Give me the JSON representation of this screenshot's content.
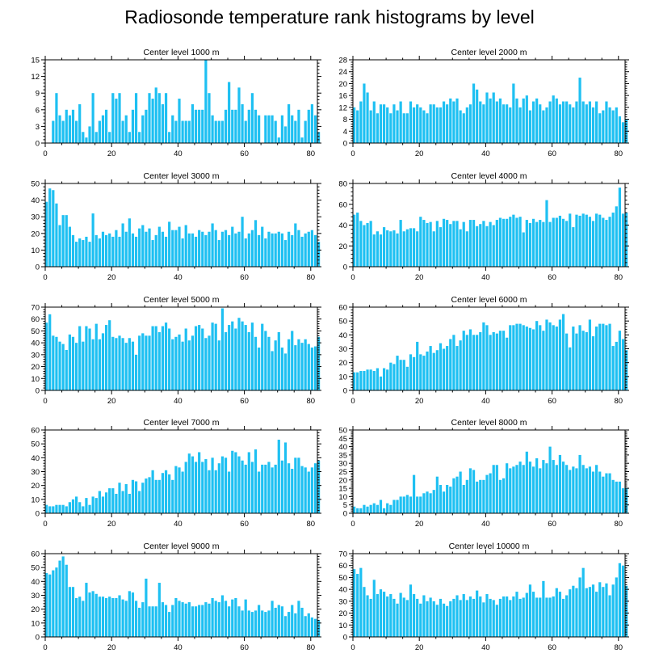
{
  "title": "Radiosonde temperature rank histograms by level",
  "bar_color": "#1ec0f2",
  "chart_data": [
    {
      "type": "bar",
      "title": "Center level 1000 m",
      "xlim": [
        0,
        82
      ],
      "ylim": [
        0,
        15
      ],
      "xticks": [
        0,
        20,
        40,
        60,
        80
      ],
      "yticks": [
        0,
        3,
        6,
        9,
        12,
        15
      ],
      "values": [
        0,
        0,
        4,
        9,
        5,
        4,
        6,
        5,
        6,
        4,
        7,
        2,
        1,
        3,
        9,
        2,
        4,
        5,
        6,
        2,
        9,
        8,
        9,
        4,
        5,
        2,
        6,
        9,
        2,
        5,
        6,
        9,
        8,
        10,
        9,
        7,
        9,
        2,
        5,
        4,
        8,
        4,
        4,
        4,
        7,
        6,
        6,
        6,
        15,
        9,
        5,
        4,
        4,
        4,
        6,
        11,
        6,
        6,
        10,
        7,
        4,
        6,
        9,
        6,
        5,
        0,
        5,
        5,
        5,
        4,
        1,
        5,
        3,
        7,
        5,
        4,
        6,
        1,
        4,
        6,
        7,
        5,
        2
      ]
    },
    {
      "type": "bar",
      "title": "Center level 2000 m",
      "xlim": [
        0,
        82
      ],
      "ylim": [
        0,
        28
      ],
      "xticks": [
        0,
        20,
        40,
        60,
        80
      ],
      "yticks": [
        0,
        4,
        8,
        12,
        16,
        20,
        24,
        28
      ],
      "values": [
        12,
        11,
        14,
        20,
        17,
        11,
        14,
        10,
        13,
        13,
        12,
        10,
        13,
        11,
        14,
        10,
        10,
        14,
        12,
        13,
        12,
        11,
        10,
        13,
        13,
        12,
        12,
        14,
        13,
        15,
        14,
        15,
        11,
        10,
        12,
        13,
        20,
        18,
        14,
        13,
        17,
        15,
        17,
        14,
        15,
        13,
        13,
        12,
        20,
        15,
        12,
        15,
        16,
        11,
        14,
        15,
        13,
        11,
        12,
        14,
        16,
        15,
        13,
        14,
        14,
        13,
        12,
        14,
        22,
        14,
        13,
        14,
        12,
        14,
        10,
        11,
        14,
        12,
        11,
        12,
        9,
        7,
        8
      ]
    },
    {
      "type": "bar",
      "title": "Center level 3000 m",
      "xlim": [
        0,
        82
      ],
      "ylim": [
        0,
        50
      ],
      "xticks": [
        0,
        20,
        40,
        60,
        80
      ],
      "yticks": [
        0,
        10,
        20,
        30,
        40,
        50
      ],
      "values": [
        39,
        47,
        46,
        38,
        25,
        31,
        31,
        24,
        19,
        15,
        17,
        16,
        18,
        15,
        32,
        19,
        17,
        21,
        19,
        20,
        18,
        22,
        18,
        26,
        21,
        29,
        20,
        18,
        23,
        25,
        21,
        23,
        16,
        19,
        24,
        21,
        18,
        27,
        22,
        22,
        24,
        17,
        25,
        20,
        20,
        18,
        22,
        21,
        19,
        21,
        26,
        22,
        16,
        21,
        22,
        19,
        24,
        20,
        21,
        30,
        17,
        20,
        22,
        28,
        19,
        24,
        17,
        21,
        20,
        20,
        21,
        20,
        16,
        21,
        19,
        26,
        22,
        18,
        20,
        21,
        22,
        19,
        15
      ]
    },
    {
      "type": "bar",
      "title": "Center level 4000 m",
      "xlim": [
        0,
        82
      ],
      "ylim": [
        0,
        80
      ],
      "xticks": [
        0,
        20,
        40,
        60,
        80
      ],
      "yticks": [
        0,
        20,
        40,
        60,
        80
      ],
      "values": [
        50,
        52,
        44,
        40,
        42,
        44,
        31,
        34,
        31,
        38,
        35,
        34,
        35,
        32,
        45,
        34,
        36,
        37,
        37,
        34,
        48,
        45,
        42,
        43,
        34,
        44,
        38,
        46,
        45,
        41,
        44,
        44,
        36,
        43,
        34,
        45,
        45,
        39,
        41,
        44,
        39,
        43,
        40,
        45,
        47,
        46,
        46,
        48,
        50,
        47,
        48,
        33,
        45,
        42,
        46,
        43,
        45,
        43,
        64,
        43,
        47,
        47,
        49,
        46,
        44,
        51,
        38,
        50,
        49,
        51,
        50,
        48,
        44,
        51,
        50,
        47,
        45,
        48,
        52,
        58,
        76,
        51,
        52
      ]
    },
    {
      "type": "bar",
      "title": "Center level 5000 m",
      "xlim": [
        0,
        82
      ],
      "ylim": [
        0,
        70
      ],
      "xticks": [
        0,
        20,
        40,
        60,
        80
      ],
      "yticks": [
        0,
        10,
        20,
        30,
        40,
        50,
        60,
        70
      ],
      "values": [
        57,
        64,
        46,
        45,
        41,
        39,
        34,
        47,
        45,
        40,
        54,
        41,
        54,
        52,
        43,
        56,
        43,
        48,
        55,
        59,
        45,
        44,
        46,
        44,
        40,
        44,
        41,
        30,
        46,
        48,
        46,
        46,
        54,
        54,
        49,
        54,
        57,
        52,
        43,
        45,
        47,
        41,
        52,
        42,
        46,
        54,
        55,
        52,
        44,
        46,
        57,
        56,
        42,
        69,
        49,
        55,
        58,
        52,
        61,
        58,
        55,
        49,
        57,
        45,
        36,
        56,
        50,
        45,
        33,
        42,
        49,
        36,
        31,
        43,
        50,
        38,
        43,
        40,
        43,
        39,
        36,
        37,
        45
      ]
    },
    {
      "type": "bar",
      "title": "Center level 6000 m",
      "xlim": [
        0,
        82
      ],
      "ylim": [
        0,
        60
      ],
      "xticks": [
        0,
        20,
        40,
        60,
        80
      ],
      "yticks": [
        0,
        10,
        20,
        30,
        40,
        50,
        60
      ],
      "values": [
        13,
        13,
        14,
        14,
        15,
        15,
        14,
        16,
        10,
        16,
        15,
        20,
        19,
        25,
        22,
        22,
        17,
        26,
        24,
        35,
        26,
        25,
        28,
        32,
        27,
        29,
        34,
        30,
        32,
        37,
        40,
        32,
        36,
        43,
        40,
        44,
        40,
        40,
        42,
        49,
        47,
        40,
        42,
        41,
        43,
        43,
        38,
        47,
        47,
        48,
        48,
        47,
        46,
        45,
        44,
        50,
        47,
        43,
        51,
        49,
        47,
        46,
        51,
        55,
        41,
        31,
        46,
        41,
        47,
        43,
        42,
        51,
        39,
        46,
        48,
        48,
        47,
        48,
        32,
        35,
        43,
        37,
        29
      ]
    },
    {
      "type": "bar",
      "title": "Center level 7000 m",
      "xlim": [
        0,
        82
      ],
      "ylim": [
        0,
        60
      ],
      "xticks": [
        0,
        20,
        40,
        60,
        80
      ],
      "yticks": [
        0,
        10,
        20,
        30,
        40,
        50,
        60
      ],
      "values": [
        6,
        5,
        5,
        6,
        6,
        6,
        5,
        8,
        10,
        12,
        8,
        5,
        11,
        6,
        12,
        11,
        16,
        12,
        15,
        18,
        18,
        14,
        22,
        16,
        21,
        14,
        24,
        23,
        16,
        22,
        25,
        26,
        31,
        24,
        24,
        29,
        31,
        28,
        24,
        34,
        33,
        30,
        37,
        43,
        41,
        37,
        44,
        37,
        39,
        31,
        40,
        31,
        36,
        41,
        40,
        30,
        45,
        44,
        41,
        38,
        35,
        44,
        37,
        46,
        30,
        35,
        35,
        37,
        33,
        35,
        53,
        38,
        51,
        36,
        32,
        40,
        40,
        34,
        33,
        30,
        33,
        36,
        38
      ]
    },
    {
      "type": "bar",
      "title": "Center level 8000 m",
      "xlim": [
        0,
        82
      ],
      "ylim": [
        0,
        50
      ],
      "xticks": [
        0,
        20,
        40,
        60,
        80
      ],
      "yticks": [
        0,
        5,
        10,
        15,
        20,
        25,
        30,
        35,
        40,
        45,
        50
      ],
      "values": [
        4,
        3,
        3,
        5,
        4,
        5,
        6,
        5,
        8,
        3,
        6,
        5,
        8,
        8,
        10,
        10,
        11,
        10,
        23,
        10,
        10,
        12,
        13,
        12,
        14,
        22,
        17,
        13,
        17,
        16,
        21,
        22,
        25,
        17,
        20,
        27,
        26,
        19,
        20,
        20,
        23,
        24,
        29,
        29,
        20,
        21,
        30,
        27,
        28,
        29,
        31,
        29,
        37,
        31,
        28,
        33,
        27,
        32,
        30,
        40,
        32,
        29,
        35,
        31,
        29,
        26,
        28,
        27,
        35,
        29,
        27,
        28,
        25,
        29,
        25,
        22,
        24,
        24,
        20,
        19,
        19,
        15,
        15
      ]
    },
    {
      "type": "bar",
      "title": "Center level 9000 m",
      "xlim": [
        0,
        82
      ],
      "ylim": [
        0,
        60
      ],
      "xticks": [
        0,
        20,
        40,
        60,
        80
      ],
      "yticks": [
        0,
        10,
        20,
        30,
        40,
        50,
        60
      ],
      "values": [
        46,
        45,
        48,
        50,
        55,
        58,
        52,
        36,
        36,
        28,
        29,
        26,
        39,
        32,
        33,
        31,
        29,
        29,
        28,
        29,
        28,
        28,
        30,
        27,
        26,
        33,
        32,
        26,
        21,
        25,
        42,
        22,
        22,
        22,
        39,
        25,
        23,
        18,
        23,
        28,
        26,
        25,
        24,
        25,
        22,
        22,
        23,
        23,
        25,
        24,
        28,
        26,
        25,
        30,
        26,
        22,
        27,
        28,
        22,
        19,
        27,
        19,
        18,
        19,
        23,
        19,
        18,
        19,
        26,
        21,
        23,
        22,
        15,
        18,
        23,
        17,
        26,
        21,
        15,
        17,
        14,
        13,
        12
      ]
    },
    {
      "type": "bar",
      "title": "Center level 10000 m",
      "xlim": [
        0,
        82
      ],
      "ylim": [
        0,
        70
      ],
      "xticks": [
        0,
        20,
        40,
        60,
        80
      ],
      "yticks": [
        0,
        10,
        20,
        30,
        40,
        50,
        60,
        70
      ],
      "values": [
        57,
        53,
        58,
        42,
        35,
        32,
        48,
        36,
        40,
        38,
        34,
        36,
        32,
        28,
        37,
        33,
        31,
        44,
        36,
        32,
        28,
        35,
        30,
        33,
        30,
        27,
        32,
        28,
        26,
        30,
        32,
        35,
        31,
        36,
        31,
        34,
        32,
        39,
        34,
        29,
        36,
        32,
        31,
        27,
        32,
        34,
        34,
        31,
        34,
        38,
        32,
        33,
        37,
        44,
        38,
        33,
        33,
        47,
        33,
        33,
        34,
        41,
        38,
        32,
        35,
        40,
        43,
        41,
        50,
        58,
        41,
        42,
        44,
        38,
        46,
        42,
        45,
        35,
        44,
        50,
        62,
        60,
        43
      ]
    }
  ]
}
